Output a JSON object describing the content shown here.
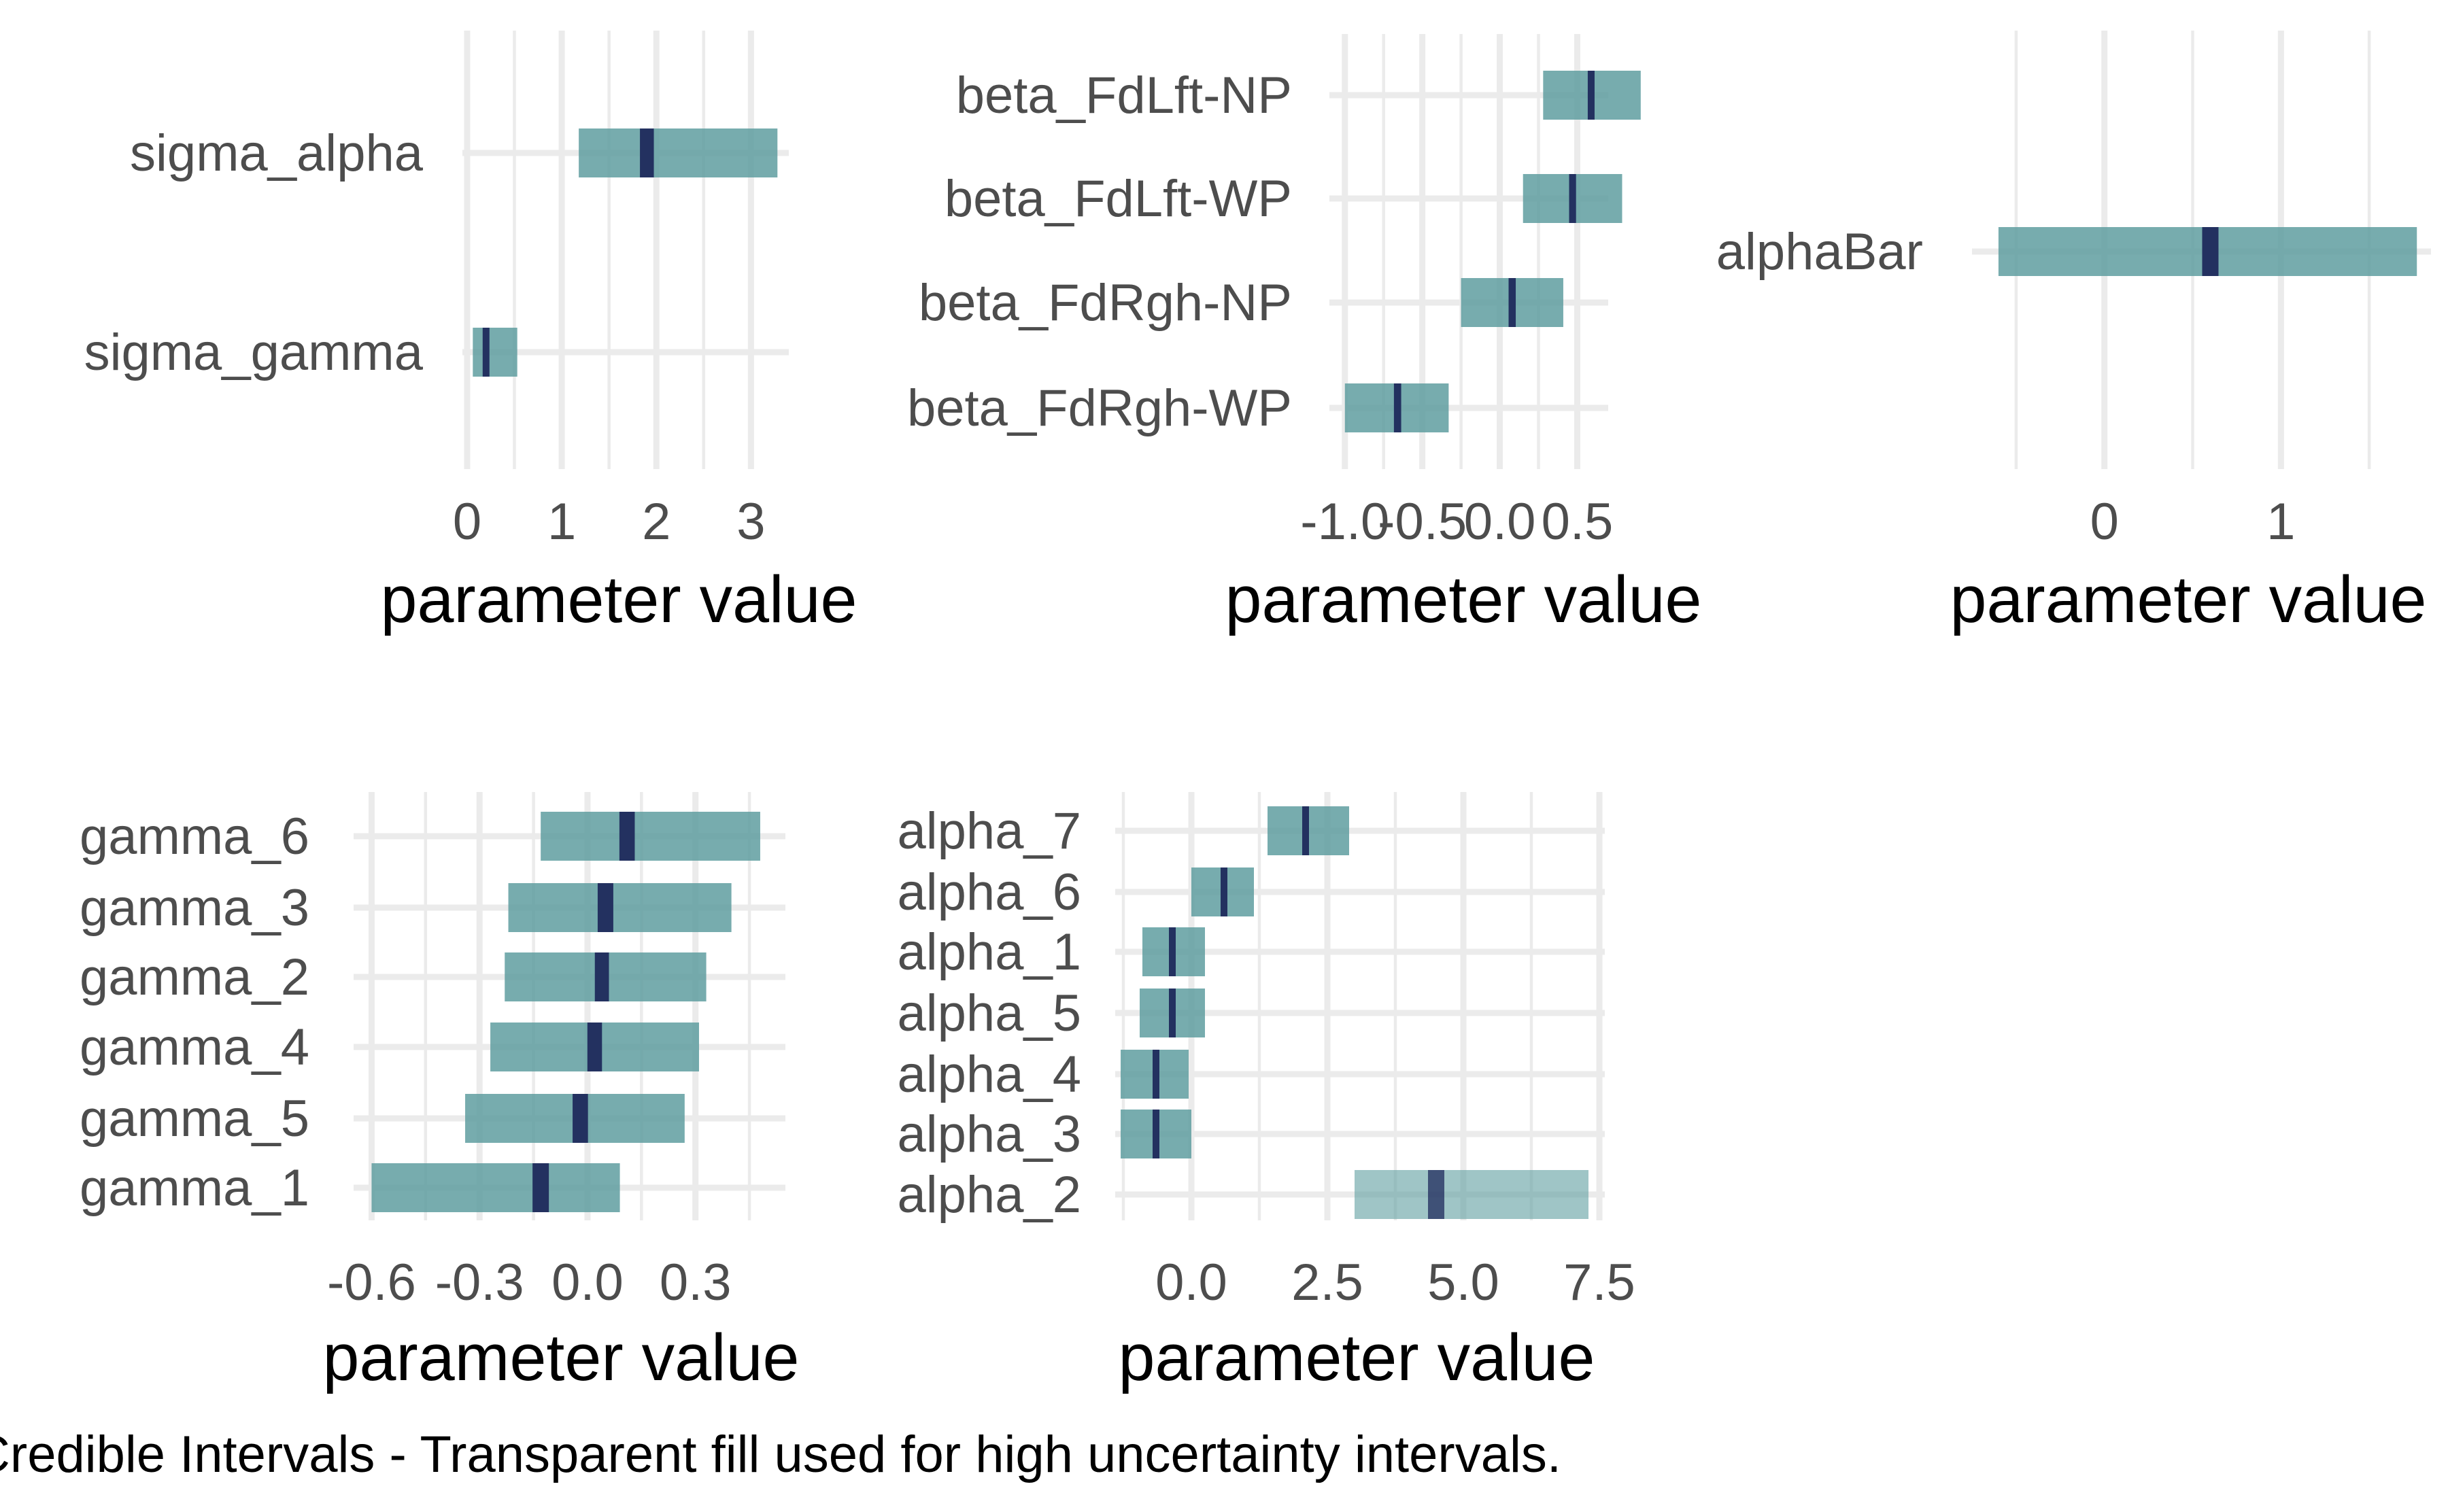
{
  "caption": "Credible Intervals - Transparent fill used for high uncertainty intervals.",
  "colors": {
    "interval_fill": "#5f9ea0",
    "median_mark": "#1f2a5c",
    "grid": "#ebebeb",
    "tick_text": "#4d4d4d"
  },
  "chart_data": [
    {
      "type": "interval",
      "xlabel": "parameter value",
      "xticks": [
        0,
        1,
        2,
        3
      ],
      "xtick_labels": [
        "0",
        "1",
        "2",
        "3"
      ],
      "xlim": [
        -0.05,
        3.4
      ],
      "grid": true,
      "parameters": [
        {
          "label": "sigma_alpha",
          "low": 1.18,
          "median": 1.9,
          "high": 3.28,
          "high_uncertainty": false
        },
        {
          "label": "sigma_gamma",
          "low": 0.06,
          "median": 0.2,
          "high": 0.53,
          "high_uncertainty": false
        }
      ]
    },
    {
      "type": "interval",
      "xlabel": "parameter value",
      "xticks": [
        -1.0,
        -0.5,
        0.0,
        0.5
      ],
      "xtick_labels": [
        "-1.0",
        "-0.5",
        "0.0",
        "0.5"
      ],
      "xlim": [
        -1.1,
        0.7
      ],
      "grid": true,
      "parameters": [
        {
          "label": "beta_FdLft-NP",
          "low": 0.28,
          "median": 0.59,
          "high": 0.91,
          "high_uncertainty": false
        },
        {
          "label": "beta_FdLft-WP",
          "low": 0.15,
          "median": 0.47,
          "high": 0.79,
          "high_uncertainty": false
        },
        {
          "label": "beta_FdRgh-NP",
          "low": -0.25,
          "median": 0.08,
          "high": 0.41,
          "high_uncertainty": false
        },
        {
          "label": "beta_FdRgh-WP",
          "low": -1.0,
          "median": -0.66,
          "high": -0.33,
          "high_uncertainty": false
        }
      ]
    },
    {
      "type": "interval",
      "xlabel": "parameter value",
      "xticks": [
        0,
        1
      ],
      "xtick_labels": [
        "0",
        "1"
      ],
      "xlim": [
        -0.75,
        1.85
      ],
      "grid": true,
      "parameters": [
        {
          "label": "alphaBar",
          "low": -0.6,
          "median": 0.6,
          "high": 1.77,
          "high_uncertainty": false
        }
      ]
    },
    {
      "type": "interval",
      "xlabel": "parameter value",
      "xticks": [
        -0.6,
        -0.3,
        0.0,
        0.3
      ],
      "xtick_labels": [
        "-0.6",
        "-0.3",
        "0.0",
        "0.3"
      ],
      "xlim": [
        -0.65,
        0.55
      ],
      "grid": true,
      "parameters": [
        {
          "label": "gamma_6",
          "low": -0.13,
          "median": 0.11,
          "high": 0.48,
          "high_uncertainty": false
        },
        {
          "label": "gamma_3",
          "low": -0.22,
          "median": 0.05,
          "high": 0.4,
          "high_uncertainty": false
        },
        {
          "label": "gamma_2",
          "low": -0.23,
          "median": 0.04,
          "high": 0.33,
          "high_uncertainty": false
        },
        {
          "label": "gamma_4",
          "low": -0.27,
          "median": 0.02,
          "high": 0.31,
          "high_uncertainty": false
        },
        {
          "label": "gamma_5",
          "low": -0.34,
          "median": -0.02,
          "high": 0.27,
          "high_uncertainty": false
        },
        {
          "label": "gamma_1",
          "low": -0.6,
          "median": -0.13,
          "high": 0.09,
          "high_uncertainty": false
        }
      ]
    },
    {
      "type": "interval",
      "xlabel": "parameter value",
      "xticks": [
        0.0,
        2.5,
        5.0,
        7.5
      ],
      "xtick_labels": [
        "0.0",
        "2.5",
        "5.0",
        "7.5"
      ],
      "xlim": [
        -1.4,
        7.6
      ],
      "grid": true,
      "parameters": [
        {
          "label": "alpha_7",
          "low": 1.4,
          "median": 2.1,
          "high": 2.9,
          "high_uncertainty": false
        },
        {
          "label": "alpha_6",
          "low": 0.0,
          "median": 0.6,
          "high": 1.15,
          "high_uncertainty": false
        },
        {
          "label": "alpha_1",
          "low": -0.9,
          "median": -0.35,
          "high": 0.25,
          "high_uncertainty": false
        },
        {
          "label": "alpha_5",
          "low": -0.95,
          "median": -0.35,
          "high": 0.25,
          "high_uncertainty": false
        },
        {
          "label": "alpha_4",
          "low": -1.3,
          "median": -0.65,
          "high": -0.05,
          "high_uncertainty": false
        },
        {
          "label": "alpha_3",
          "low": -1.3,
          "median": -0.65,
          "high": 0.0,
          "high_uncertainty": false
        },
        {
          "label": "alpha_2",
          "low": 3.0,
          "median": 4.5,
          "high": 7.3,
          "high_uncertainty": true
        }
      ]
    }
  ]
}
